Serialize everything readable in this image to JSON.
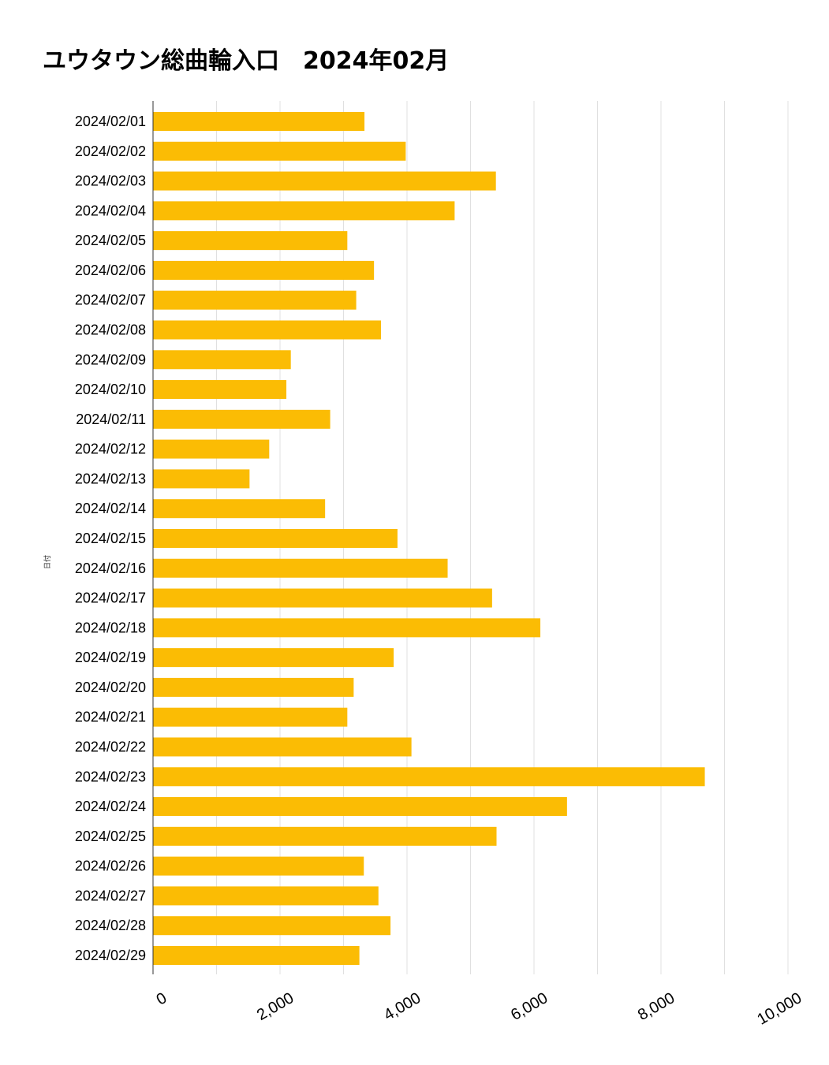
{
  "chart_data": {
    "type": "bar",
    "orientation": "horizontal",
    "title": "ユウタウン総曲輪入口　2024年02月",
    "ylabel": "日付",
    "xlabel": "",
    "categories": [
      "2024/02/01",
      "2024/02/02",
      "2024/02/03",
      "2024/02/04",
      "2024/02/05",
      "2024/02/06",
      "2024/02/07",
      "2024/02/08",
      "2024/02/09",
      "2024/02/10",
      "2024/02/11",
      "2024/02/12",
      "2024/02/13",
      "2024/02/14",
      "2024/02/15",
      "2024/02/16",
      "2024/02/17",
      "2024/02/18",
      "2024/02/19",
      "2024/02/20",
      "2024/02/21",
      "2024/02/22",
      "2024/02/23",
      "2024/02/24",
      "2024/02/25",
      "2024/02/26",
      "2024/02/27",
      "2024/02/28",
      "2024/02/29"
    ],
    "values": [
      3330,
      3980,
      5400,
      4750,
      3060,
      3480,
      3200,
      3590,
      2170,
      2100,
      2790,
      1830,
      1520,
      2710,
      3850,
      4640,
      5340,
      6100,
      3790,
      3160,
      3060,
      4070,
      8690,
      6520,
      5410,
      3320,
      3550,
      3740,
      3250
    ],
    "xlim": [
      0,
      10000
    ],
    "x_ticks": [
      "0",
      "2,000",
      "4,000",
      "6,000",
      "8,000",
      "10,000"
    ],
    "grid": true,
    "colors": {
      "bar": "#FBBC04",
      "grid": "#e0e0e0",
      "axis": "#333333"
    }
  }
}
